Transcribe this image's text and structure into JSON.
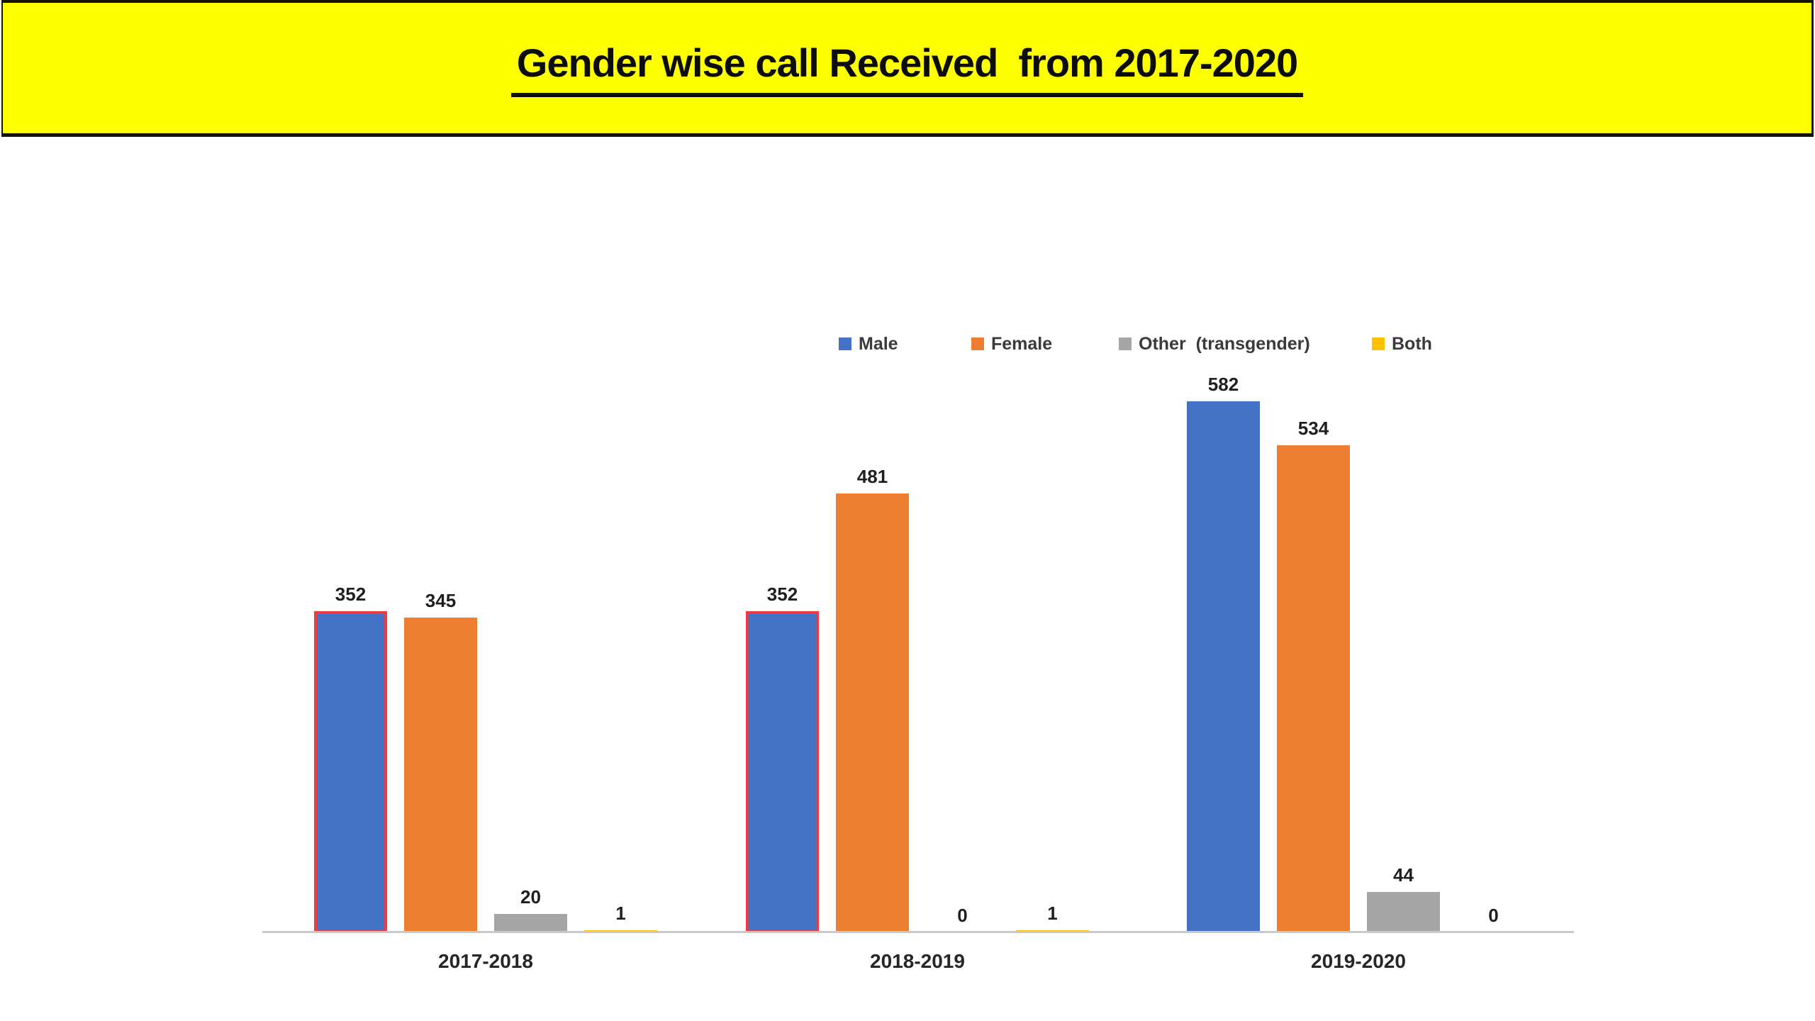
{
  "title": {
    "text": "Gender wise call Received  from 2017-2020"
  },
  "chart_data": {
    "type": "bar",
    "title": "Gender wise call Received  from 2017-2020",
    "categories": [
      "2017-2018",
      "2018-2019",
      "2019-2020"
    ],
    "series": [
      {
        "name": "Male",
        "color": "#4472C4",
        "values": [
          352,
          352,
          582
        ],
        "outlined": [
          true,
          true,
          false
        ]
      },
      {
        "name": "Female",
        "color": "#ED7D31",
        "values": [
          345,
          481,
          534
        ],
        "outlined": [
          false,
          false,
          false
        ]
      },
      {
        "name": "Other  (transgender)",
        "color": "#A6A6A6",
        "values": [
          20,
          0,
          44
        ],
        "outlined": [
          false,
          false,
          false
        ]
      },
      {
        "name": "Both",
        "color": "#FFC000",
        "values": [
          1,
          1,
          0
        ],
        "outlined": [
          false,
          false,
          false
        ]
      }
    ],
    "data_labels": true,
    "legend_position": "top",
    "y_axis_visible": false,
    "gridlines": false,
    "xlabel": "",
    "ylabel": "",
    "ylim": [
      0,
      620
    ],
    "highlight_outline_color": "#EE3B43",
    "axis_line_color": "#C9C9C9",
    "title_banner_color": "#FDFF00"
  }
}
